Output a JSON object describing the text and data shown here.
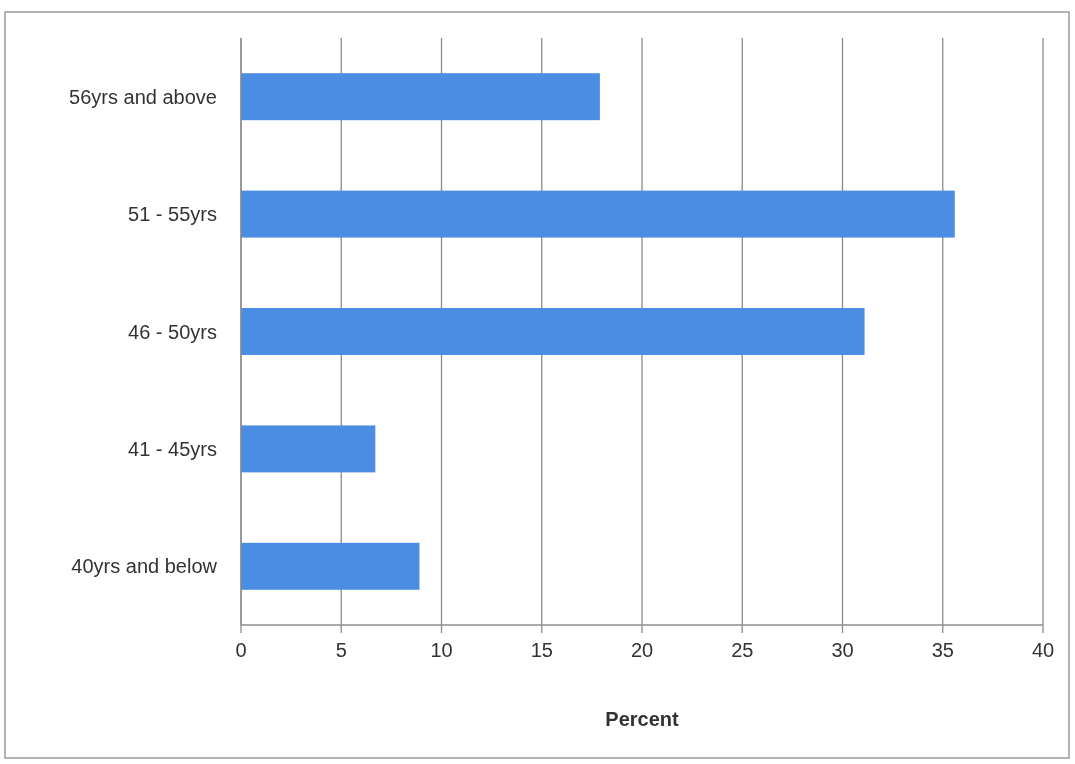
{
  "chart_data": {
    "type": "bar",
    "orientation": "horizontal",
    "xlabel": "Percent",
    "categories": [
      "56yrs and above",
      "51 - 55yrs",
      "46 - 50yrs",
      "41 - 45yrs",
      "40yrs and below"
    ],
    "values": [
      17.9,
      35.6,
      31.1,
      6.7,
      8.9
    ],
    "color": "#4a8de3",
    "xlim": [
      0,
      40
    ],
    "xticks": [
      0,
      5,
      10,
      15,
      20,
      25,
      30,
      35,
      40
    ],
    "grid": "x"
  }
}
